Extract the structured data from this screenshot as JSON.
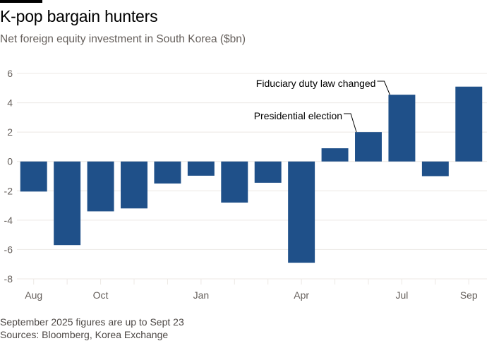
{
  "header": {
    "title": "K-pop bargain hunters",
    "subtitle": "Net foreign equity investment in South Korea ($bn)"
  },
  "footer": {
    "note": "September 2025 figures are up to Sept 23",
    "sources": "Sources: Bloomberg, Korea Exchange"
  },
  "colors": {
    "bar": "#1f5089",
    "grid": "#ece8e4",
    "axis_text": "#66605c"
  },
  "chart_data": {
    "type": "bar",
    "title": "K-pop bargain hunters",
    "subtitle": "Net foreign equity investment in South Korea ($bn)",
    "xlabel": "",
    "ylabel": "$bn",
    "categories": [
      "Aug 2024",
      "Sep 2024",
      "Oct 2024",
      "Nov 2024",
      "Dec 2024",
      "Jan 2025",
      "Feb 2025",
      "Mar 2025",
      "Apr 2025",
      "May 2025",
      "Jun 2025",
      "Jul 2025",
      "Aug 2025",
      "Sep 2025"
    ],
    "values": [
      -2.05,
      -5.7,
      -3.4,
      -3.2,
      -1.5,
      -0.97,
      -2.8,
      -1.45,
      -6.9,
      0.9,
      2.0,
      4.55,
      -1.0,
      5.1
    ],
    "x_tick_labels": [
      {
        "index": 0,
        "label": "Aug"
      },
      {
        "index": 2,
        "label": "Oct"
      },
      {
        "index": 5,
        "label": "Jan"
      },
      {
        "index": 8,
        "label": "Apr"
      },
      {
        "index": 11,
        "label": "Jul"
      },
      {
        "index": 13,
        "label": "Sep"
      }
    ],
    "y_ticks": [
      6,
      4,
      2,
      0,
      -2,
      -4,
      -6,
      -8
    ],
    "ylim": [
      -8,
      6
    ],
    "grid": true,
    "annotations": [
      {
        "text": "Fiduciary duty law changed",
        "target_index": 11
      },
      {
        "text": "Presidential election",
        "target_index": 10
      }
    ]
  }
}
